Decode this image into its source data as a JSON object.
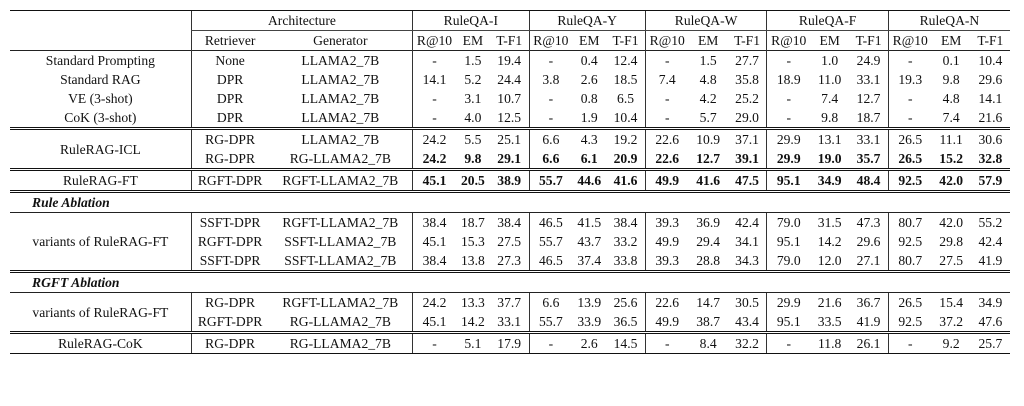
{
  "header": {
    "architecture": "Architecture",
    "retriever": "Retriever",
    "generator": "Generator",
    "datasets": [
      "RuleQA-I",
      "RuleQA-Y",
      "RuleQA-W",
      "RuleQA-F",
      "RuleQA-N"
    ],
    "metrics": [
      "R@10",
      "EM",
      "T-F1"
    ]
  },
  "rows": {
    "sp": {
      "name": "Standard Prompting",
      "ret": "None",
      "gen": "LLAMA2_7B",
      "v": [
        "-",
        "1.5",
        "19.4",
        "-",
        "0.4",
        "12.4",
        "-",
        "1.5",
        "27.7",
        "-",
        "1.0",
        "24.9",
        "-",
        "0.1",
        "10.4"
      ]
    },
    "srag": {
      "name": "Standard RAG",
      "ret": "DPR",
      "gen": "LLAMA2_7B",
      "v": [
        "14.1",
        "5.2",
        "24.4",
        "3.8",
        "2.6",
        "18.5",
        "7.4",
        "4.8",
        "35.8",
        "18.9",
        "11.0",
        "33.1",
        "19.3",
        "9.8",
        "29.6"
      ]
    },
    "ve": {
      "name": "VE (3-shot)",
      "ret": "DPR",
      "gen": "LLAMA2_7B",
      "v": [
        "-",
        "3.1",
        "10.7",
        "-",
        "0.8",
        "6.5",
        "-",
        "4.2",
        "25.2",
        "-",
        "7.4",
        "12.7",
        "-",
        "4.8",
        "14.1"
      ]
    },
    "cok": {
      "name": "CoK (3-shot)",
      "ret": "DPR",
      "gen": "LLAMA2_7B",
      "v": [
        "-",
        "4.0",
        "12.5",
        "-",
        "1.9",
        "10.4",
        "-",
        "5.7",
        "29.0",
        "-",
        "9.8",
        "18.7",
        "-",
        "7.4",
        "21.6"
      ]
    },
    "icl1": {
      "name": "RuleRAG-ICL",
      "ret": "RG-DPR",
      "gen": "LLAMA2_7B",
      "v": [
        "24.2",
        "5.5",
        "25.1",
        "6.6",
        "4.3",
        "19.2",
        "22.6",
        "10.9",
        "37.1",
        "29.9",
        "13.1",
        "33.1",
        "26.5",
        "11.1",
        "30.6"
      ]
    },
    "icl2": {
      "ret": "RG-DPR",
      "gen": "RG-LLAMA2_7B",
      "v": [
        "24.2",
        "9.8",
        "29.1",
        "6.6",
        "6.1",
        "20.9",
        "22.6",
        "12.7",
        "39.1",
        "29.9",
        "19.0",
        "35.7",
        "26.5",
        "15.2",
        "32.8"
      ]
    },
    "ft": {
      "name": "RuleRAG-FT",
      "ret": "RGFT-DPR",
      "gen": "RGFT-LLAMA2_7B",
      "v": [
        "45.1",
        "20.5",
        "38.9",
        "55.7",
        "44.6",
        "41.6",
        "49.9",
        "41.6",
        "47.5",
        "95.1",
        "34.9",
        "48.4",
        "92.5",
        "42.0",
        "57.9"
      ]
    },
    "rule_ablation": "Rule Ablation",
    "ra_name": "variants of RuleRAG-FT",
    "ra1": {
      "ret": "SSFT-DPR",
      "gen": "RGFT-LLAMA2_7B",
      "v": [
        "38.4",
        "18.7",
        "38.4",
        "46.5",
        "41.5",
        "38.4",
        "39.3",
        "36.9",
        "42.4",
        "79.0",
        "31.5",
        "47.3",
        "80.7",
        "42.0",
        "55.2"
      ]
    },
    "ra2": {
      "ret": "RGFT-DPR",
      "gen": "SSFT-LLAMA2_7B",
      "v": [
        "45.1",
        "15.3",
        "27.5",
        "55.7",
        "43.7",
        "33.2",
        "49.9",
        "29.4",
        "34.1",
        "95.1",
        "14.2",
        "29.6",
        "92.5",
        "29.8",
        "42.4"
      ]
    },
    "ra3": {
      "ret": "SSFT-DPR",
      "gen": "SSFT-LLAMA2_7B",
      "v": [
        "38.4",
        "13.8",
        "27.3",
        "46.5",
        "37.4",
        "33.8",
        "39.3",
        "28.8",
        "34.3",
        "79.0",
        "12.0",
        "27.1",
        "80.7",
        "27.5",
        "41.9"
      ]
    },
    "rgft_ablation": "RGFT Ablation",
    "ga_name": "variants of RuleRAG-FT",
    "ga1": {
      "ret": "RG-DPR",
      "gen": "RGFT-LLAMA2_7B",
      "v": [
        "24.2",
        "13.3",
        "37.7",
        "6.6",
        "13.9",
        "25.6",
        "22.6",
        "14.7",
        "30.5",
        "29.9",
        "21.6",
        "36.7",
        "26.5",
        "15.4",
        "34.9"
      ]
    },
    "ga2": {
      "ret": "RGFT-DPR",
      "gen": "RG-LLAMA2_7B",
      "v": [
        "45.1",
        "14.2",
        "33.1",
        "55.7",
        "33.9",
        "36.5",
        "49.9",
        "38.7",
        "43.4",
        "95.1",
        "33.5",
        "41.9",
        "92.5",
        "37.2",
        "47.6"
      ]
    },
    "rcok": {
      "name": "RuleRAG-CoK",
      "ret": "RG-DPR",
      "gen": "RG-LLAMA2_7B",
      "v": [
        "-",
        "5.1",
        "17.9",
        "-",
        "2.6",
        "14.5",
        "-",
        "8.4",
        "32.2",
        "-",
        "11.8",
        "26.1",
        "-",
        "9.2",
        "25.7"
      ]
    }
  }
}
